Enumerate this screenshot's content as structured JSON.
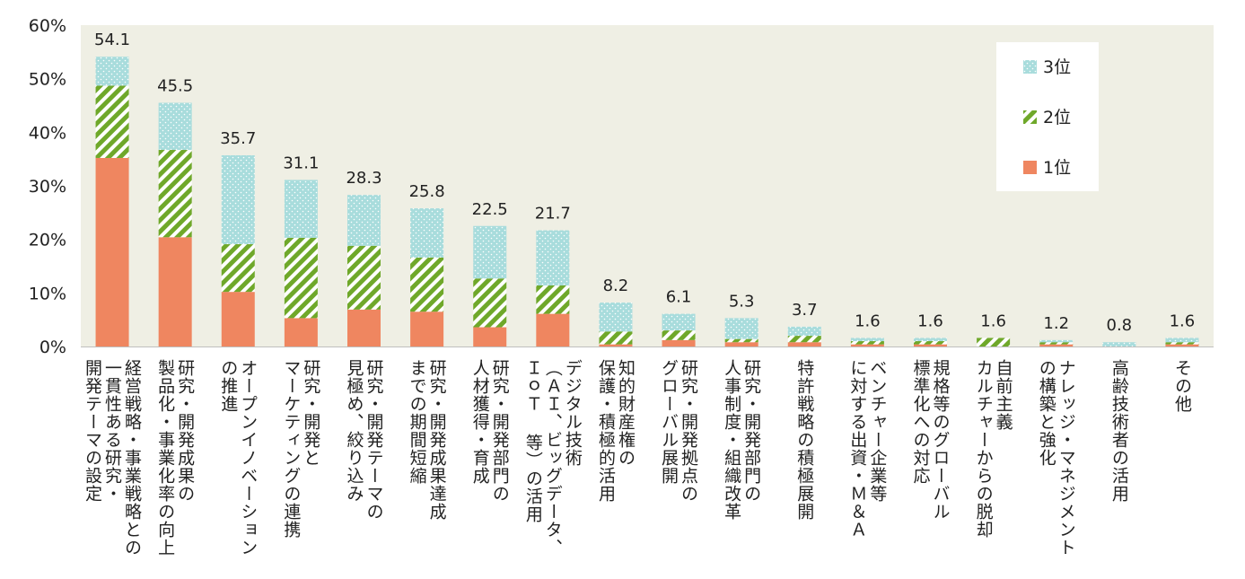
{
  "chart_data": {
    "type": "bar",
    "stacked": true,
    "ylim": [
      0,
      60
    ],
    "y_ticks": [
      "0%",
      "10%",
      "20%",
      "30%",
      "40%",
      "50%",
      "60%"
    ],
    "grid": false,
    "plot_background": "#efefe4",
    "legend": {
      "placement": "top-right",
      "order": [
        "3位",
        "2位",
        "1位"
      ]
    },
    "categories": [
      "経営戦略・事業戦略との一貫性ある研究・開発テーマの設定",
      "研究・開発成果の製品化・事業化率の向上",
      "オープンイノベーションの推進",
      "研究・開発とマーケティングの連携",
      "研究・開発テーマの見極め、絞り込み",
      "研究・開発成果達成までの期間短縮",
      "研究・開発部門の人材獲得・育成",
      "デジタル技術（ＡＩ、ビッグデータ、ＩｏＴ 等）の活用",
      "知的財産権の保護・積極的活用",
      "研究・開発拠点のグローバル展開",
      "研究・開発部門の人事制度・組織改革",
      "特許戦略の積極展開",
      "ベンチャー企業等に対する出資・Ｍ＆Ａ",
      "規格等のグローバル標準化への対応",
      "自前主義カルチャーからの脱却",
      "ナレッジ・マネジメントの構築と強化",
      "高齢技術者の活用",
      "その他"
    ],
    "category_lines": [
      [
        "経営戦略・事業戦略との",
        "一貫性ある研究・",
        "開発テーマの設定"
      ],
      [
        "研究・開発成果の",
        "製品化・事業化率の向上"
      ],
      [
        "オープンイノベーション",
        "の推進"
      ],
      [
        "研究・開発と",
        "マーケティングの連携"
      ],
      [
        "研究・開発テーマの",
        "見極め、絞り込み"
      ],
      [
        "研究・開発成果達成",
        "までの期間短縮"
      ],
      [
        "研究・開発部門の",
        "人材獲得・育成"
      ],
      [
        "デジタル技術",
        "（ＡＩ、ビッグデータ、",
        "ＩｏＴ 等）の活用"
      ],
      [
        "知的財産権の",
        "保護・積極的活用"
      ],
      [
        "研究・開発拠点の",
        "グローバル展開"
      ],
      [
        "研究・開発部門の",
        "人事制度・組織改革"
      ],
      [
        "特許戦略の積極展開"
      ],
      [
        "ベンチャー企業等",
        "に対する出資・Ｍ＆Ａ"
      ],
      [
        "規格等のグローバル",
        "標準化への対応"
      ],
      [
        "自前主義",
        "カルチャーからの脱却"
      ],
      [
        "ナレッジ・マネジメント",
        "の構築と強化"
      ],
      [
        "高齢技術者の活用"
      ],
      [
        "その他"
      ]
    ],
    "series": [
      {
        "name": "1位",
        "color": "#ef8660",
        "pattern": "solid",
        "values": [
          35.2,
          20.4,
          10.2,
          5.3,
          6.9,
          6.5,
          3.6,
          6.1,
          0.4,
          1.2,
          0.8,
          0.8,
          0.4,
          0.4,
          0.0,
          0.4,
          0.0,
          0.4
        ]
      },
      {
        "name": "2位",
        "color": "#8bc34a",
        "pattern": "diagonal-stripes",
        "values": [
          13.5,
          16.3,
          8.9,
          15.0,
          11.9,
          10.1,
          9.1,
          5.3,
          2.4,
          1.8,
          0.6,
          1.2,
          0.6,
          0.6,
          1.6,
          0.4,
          0.0,
          0.4
        ]
      },
      {
        "name": "3位",
        "color": "#a8dcdc",
        "pattern": "dots",
        "values": [
          5.4,
          8.8,
          16.6,
          10.8,
          9.5,
          9.2,
          9.8,
          10.3,
          5.4,
          3.1,
          3.9,
          1.7,
          0.6,
          0.6,
          0.0,
          0.4,
          0.8,
          0.8
        ]
      }
    ],
    "totals": [
      "54.1",
      "45.5",
      "35.7",
      "31.1",
      "28.3",
      "25.8",
      "22.5",
      "21.7",
      "8.2",
      "6.1",
      "5.3",
      "3.7",
      "1.6",
      "1.6",
      "1.6",
      "1.2",
      "0.8",
      "1.6"
    ]
  }
}
